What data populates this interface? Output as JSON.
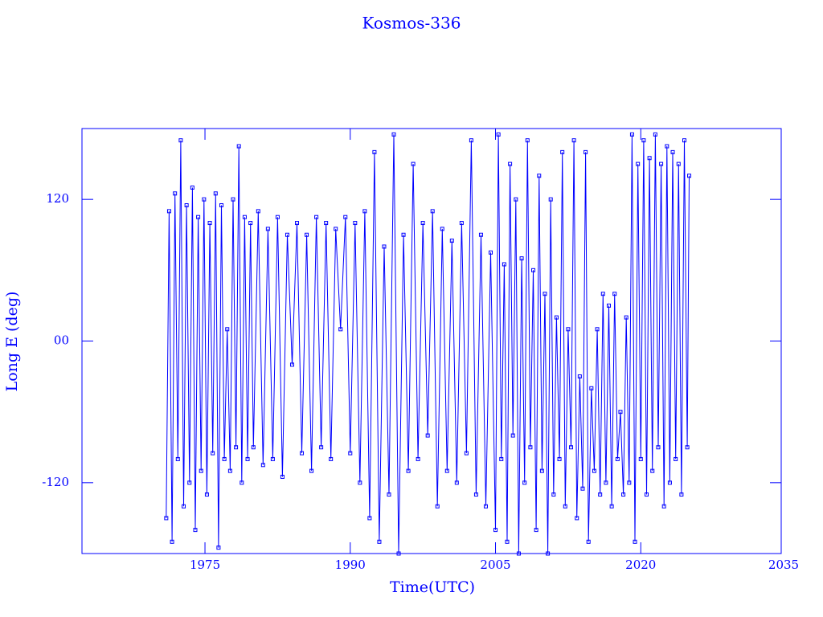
{
  "chart_data": {
    "type": "line",
    "title": "Kosmos-336",
    "xlabel": "Time(UTC)",
    "ylabel": "Long E (deg)",
    "xlim": [
      1962.3,
      2034.5
    ],
    "ylim": [
      -180,
      180
    ],
    "xticks": [
      1975,
      1990,
      2005,
      2020,
      2035
    ],
    "yticks": [
      {
        "value": -120,
        "label": "-120"
      },
      {
        "value": 0,
        "label": "00"
      },
      120
    ],
    "series": [
      {
        "color": "#0000ff",
        "x": [
          1971.0,
          1971.3,
          1971.6,
          1971.9,
          1972.2,
          1972.5,
          1972.8,
          1973.1,
          1973.4,
          1973.7,
          1974.0,
          1974.3,
          1974.6,
          1974.9,
          1975.2,
          1975.5,
          1975.8,
          1976.1,
          1976.4,
          1976.7,
          1977.0,
          1977.3,
          1977.6,
          1977.9,
          1978.2,
          1978.5,
          1978.8,
          1979.1,
          1979.4,
          1979.7,
          1980.0,
          1980.5,
          1981.0,
          1981.5,
          1982.0,
          1982.5,
          1983.0,
          1983.5,
          1984.0,
          1984.5,
          1985.0,
          1985.5,
          1986.0,
          1986.5,
          1987.0,
          1987.5,
          1988.0,
          1988.5,
          1989.0,
          1989.5,
          1990.0,
          1990.5,
          1991.0,
          1991.5,
          1992.0,
          1992.5,
          1993.0,
          1993.5,
          1994.0,
          1994.5,
          1995.0,
          1995.5,
          1996.0,
          1996.5,
          1997.0,
          1997.5,
          1998.0,
          1998.5,
          1999.0,
          1999.5,
          2000.0,
          2000.5,
          2001.0,
          2001.5,
          2002.0,
          2002.5,
          2003.0,
          2003.5,
          2004.0,
          2004.5,
          2005.0,
          2005.3,
          2005.6,
          2005.9,
          2006.2,
          2006.5,
          2006.8,
          2007.1,
          2007.4,
          2007.7,
          2008.0,
          2008.3,
          2008.6,
          2008.9,
          2009.2,
          2009.5,
          2009.8,
          2010.1,
          2010.4,
          2010.7,
          2011.0,
          2011.3,
          2011.6,
          2011.9,
          2012.2,
          2012.5,
          2012.8,
          2013.1,
          2013.4,
          2013.7,
          2014.0,
          2014.3,
          2014.6,
          2014.9,
          2015.2,
          2015.5,
          2015.8,
          2016.1,
          2016.4,
          2016.7,
          2017.0,
          2017.3,
          2017.6,
          2017.9,
          2018.2,
          2018.5,
          2018.8,
          2019.1,
          2019.4,
          2019.7,
          2020.0,
          2020.3,
          2020.6,
          2020.9,
          2021.2,
          2021.5,
          2021.8,
          2022.1,
          2022.4,
          2022.7,
          2023.0,
          2023.3,
          2023.6,
          2023.9,
          2024.2,
          2024.5,
          2024.8,
          2025.0
        ],
        "values": [
          -150,
          110,
          -170,
          125,
          -100,
          170,
          -140,
          115,
          -120,
          130,
          -160,
          105,
          -110,
          120,
          -130,
          100,
          -95,
          125,
          -175,
          115,
          -100,
          10,
          -110,
          120,
          -90,
          165,
          -120,
          105,
          -100,
          100,
          -90,
          110,
          -105,
          95,
          -100,
          105,
          -115,
          90,
          -20,
          100,
          -95,
          90,
          -110,
          105,
          -90,
          100,
          -100,
          95,
          10,
          105,
          -95,
          100,
          -120,
          110,
          -150,
          160,
          -170,
          80,
          -130,
          175,
          -180,
          90,
          -110,
          150,
          -100,
          100,
          -80,
          110,
          -140,
          95,
          -110,
          85,
          -120,
          100,
          -95,
          170,
          -130,
          90,
          -140,
          75,
          -160,
          175,
          -100,
          65,
          -170,
          150,
          -80,
          120,
          -180,
          70,
          -120,
          170,
          -90,
          60,
          -160,
          140,
          -110,
          40,
          -180,
          120,
          -130,
          20,
          -100,
          160,
          -140,
          10,
          -90,
          170,
          -150,
          -30,
          -125,
          160,
          -170,
          -40,
          -110,
          10,
          -130,
          40,
          -120,
          30,
          -140,
          40,
          -100,
          -60,
          -130,
          20,
          -120,
          175,
          -170,
          150,
          -100,
          170,
          -130,
          155,
          -110,
          175,
          -90,
          150,
          -140,
          165,
          -120,
          160,
          -100,
          150,
          -130,
          170,
          -90,
          140
        ]
      }
    ]
  }
}
